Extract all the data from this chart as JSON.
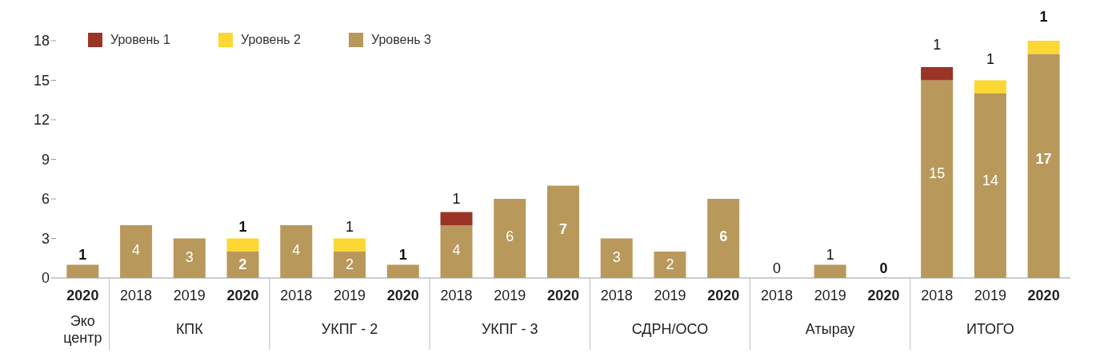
{
  "chart_data": {
    "type": "bar",
    "stacked": true,
    "categories": [
      "2020",
      "2018",
      "2019",
      "2020",
      "2018",
      "2019",
      "2020",
      "2018",
      "2019",
      "2020",
      "2018",
      "2019",
      "2020",
      "2018",
      "2019",
      "2020",
      "2018",
      "2019",
      "2020"
    ],
    "annotations": [
      "Эко центр",
      "КПК",
      "УКПГ - 2",
      "УКПГ - 3",
      "СДРН/ОСО",
      "Атырау",
      "ИТОГО"
    ],
    "series": [
      {
        "name": "Уровень 3",
        "color": "#b8995b",
        "values": [
          1,
          4,
          3,
          2,
          4,
          2,
          1,
          4,
          6,
          7,
          3,
          2,
          6,
          0,
          1,
          0,
          15,
          14,
          17
        ],
        "value_labels": [
          "1",
          "4",
          "3",
          "2",
          "4",
          "2",
          "1",
          "4",
          "6",
          "7",
          "3",
          "2",
          "6",
          "0",
          "1",
          "0",
          "15",
          "14",
          "17"
        ]
      },
      {
        "name": "Уровень 2",
        "color": "#fdd835",
        "values": [
          null,
          null,
          null,
          1,
          null,
          1,
          null,
          null,
          null,
          null,
          null,
          null,
          null,
          null,
          null,
          null,
          null,
          1,
          1
        ],
        "value_labels": [
          null,
          null,
          null,
          "1",
          null,
          "1",
          null,
          null,
          null,
          null,
          null,
          null,
          null,
          null,
          null,
          null,
          null,
          "1",
          "1"
        ]
      },
      {
        "name": "Уровень 1",
        "color": "#9b3426",
        "values": [
          null,
          null,
          null,
          null,
          null,
          null,
          null,
          1,
          null,
          null,
          null,
          null,
          null,
          null,
          null,
          null,
          1,
          null,
          null
        ],
        "value_labels": [
          null,
          null,
          null,
          null,
          null,
          null,
          null,
          "1",
          null,
          null,
          null,
          null,
          null,
          null,
          null,
          null,
          "1",
          null,
          null
        ]
      }
    ],
    "ylim": [
      0,
      18
    ],
    "yticks": [
      0,
      3,
      6,
      9,
      12,
      15,
      18
    ],
    "grid": false,
    "legend": "top left"
  }
}
